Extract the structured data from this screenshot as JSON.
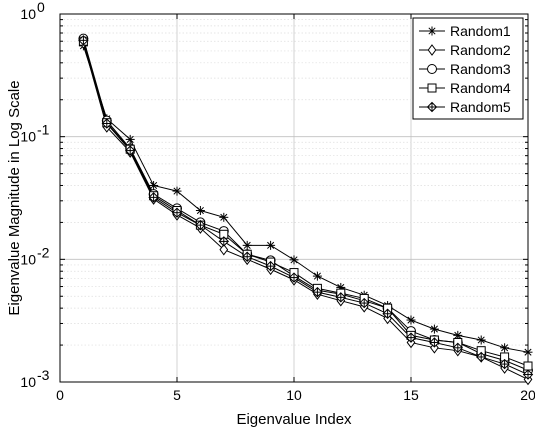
{
  "chart_data": {
    "type": "line",
    "title": "",
    "xlabel": "Eigenvalue Index",
    "ylabel": "Eigenvalue Magnitude in Log Scale",
    "xlim": [
      0,
      20
    ],
    "ylim": [
      0.001,
      1
    ],
    "yscale": "log",
    "grid": true,
    "legend_position": "top-right",
    "x_ticks": [
      0,
      5,
      10,
      15,
      20
    ],
    "y_ticks": [
      {
        "value": 0.001,
        "base": "10",
        "exp": "-3"
      },
      {
        "value": 0.01,
        "base": "10",
        "exp": "-2"
      },
      {
        "value": 0.1,
        "base": "10",
        "exp": "-1"
      },
      {
        "value": 1,
        "base": "10",
        "exp": "0"
      }
    ],
    "x": [
      1,
      2,
      3,
      4,
      5,
      6,
      7,
      8,
      9,
      10,
      11,
      12,
      13,
      14,
      15,
      16,
      17,
      18,
      19,
      20
    ],
    "series": [
      {
        "name": "Random1",
        "marker": "asterisk",
        "values": [
          0.55,
          0.14,
          0.095,
          0.04,
          0.036,
          0.025,
          0.022,
          0.013,
          0.013,
          0.0099,
          0.0073,
          0.0059,
          0.0051,
          0.0042,
          0.0032,
          0.0027,
          0.0024,
          0.0022,
          0.0019,
          0.00175
        ]
      },
      {
        "name": "Random2",
        "marker": "diamond",
        "values": [
          0.58,
          0.12,
          0.075,
          0.031,
          0.023,
          0.018,
          0.012,
          0.01,
          0.0083,
          0.0068,
          0.0052,
          0.0046,
          0.0041,
          0.0033,
          0.0021,
          0.0019,
          0.0018,
          0.0016,
          0.0013,
          0.00105
        ]
      },
      {
        "name": "Random3",
        "marker": "circle",
        "values": [
          0.63,
          0.135,
          0.08,
          0.034,
          0.026,
          0.02,
          0.017,
          0.011,
          0.0098,
          0.0073,
          0.0056,
          0.0052,
          0.0046,
          0.004,
          0.0026,
          0.0022,
          0.0021,
          0.0017,
          0.0015,
          0.00125
        ]
      },
      {
        "name": "Random4",
        "marker": "square",
        "values": [
          0.6,
          0.13,
          0.079,
          0.033,
          0.025,
          0.019,
          0.016,
          0.011,
          0.0095,
          0.0078,
          0.0058,
          0.0053,
          0.0048,
          0.004,
          0.0024,
          0.0022,
          0.0021,
          0.0018,
          0.0016,
          0.00135
        ]
      },
      {
        "name": "Random5",
        "marker": "star-diamond",
        "values": [
          0.61,
          0.128,
          0.077,
          0.032,
          0.024,
          0.019,
          0.014,
          0.0105,
          0.0088,
          0.0071,
          0.0054,
          0.0049,
          0.0044,
          0.0036,
          0.0023,
          0.0021,
          0.0019,
          0.0016,
          0.0014,
          0.00115
        ]
      }
    ]
  }
}
